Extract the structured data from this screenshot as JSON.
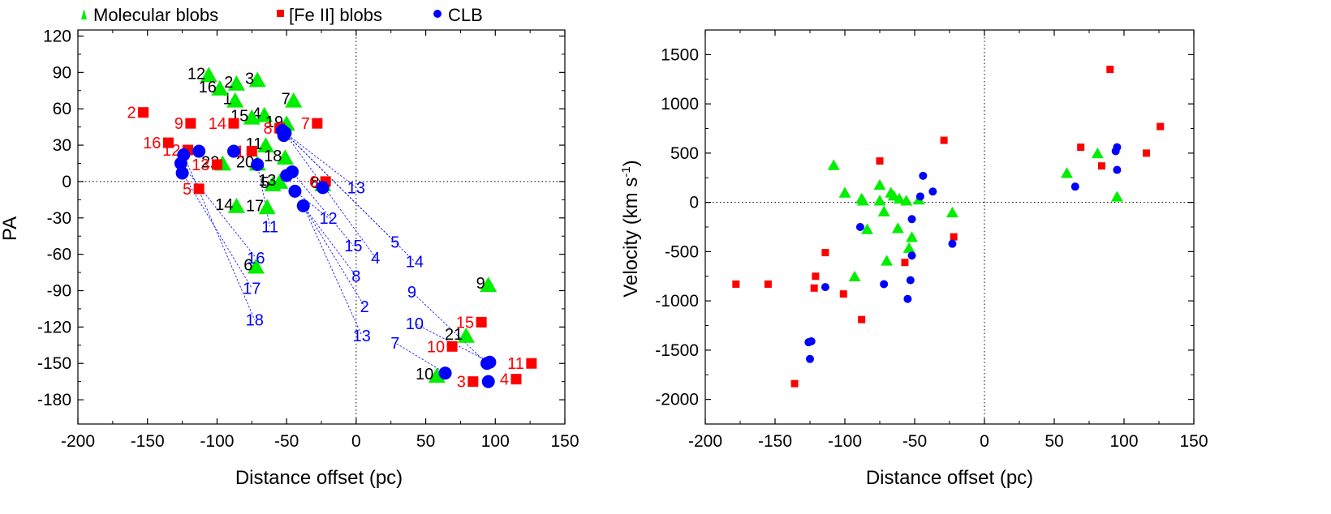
{
  "legend": [
    {
      "label": "Molecular blobs",
      "color": "#00ee00",
      "marker": "triangle"
    },
    {
      "label": "[Fe II] blobs",
      "color": "#ff0000",
      "marker": "square"
    },
    {
      "label": "CLB",
      "color": "#0000ff",
      "marker": "circle"
    }
  ],
  "chart_data": [
    {
      "type": "scatter",
      "xlabel": "Distance offset (pc)",
      "ylabel": "PA",
      "xlim": [
        -200,
        150
      ],
      "ylim": [
        -200,
        125
      ],
      "xticks": [
        -200,
        -150,
        -100,
        -50,
        0,
        50,
        100,
        150
      ],
      "yticks": [
        120,
        90,
        60,
        30,
        0,
        -30,
        -60,
        -90,
        -120,
        -150,
        -180
      ],
      "series": [
        {
          "name": "Molecular blobs",
          "color": "#00ee00",
          "marker": "triangle",
          "label_color": "#000000",
          "points": [
            {
              "id": "1",
              "x": -87,
              "y": 67
            },
            {
              "id": "2",
              "x": -86,
              "y": 81
            },
            {
              "id": "3",
              "x": -71,
              "y": 84
            },
            {
              "id": "4",
              "x": -66,
              "y": 55
            },
            {
              "id": "5",
              "x": -60,
              "y": -2
            },
            {
              "id": "6",
              "x": -72,
              "y": -70
            },
            {
              "id": "7",
              "x": -45,
              "y": 67
            },
            {
              "id": "8",
              "x": -24,
              "y": -2
            },
            {
              "id": "9",
              "x": 95,
              "y": -85
            },
            {
              "id": "10",
              "x": 58,
              "y": -160
            },
            {
              "id": "11",
              "x": -65,
              "y": 30
            },
            {
              "id": "12",
              "x": -106,
              "y": 88
            },
            {
              "id": "13",
              "x": -55,
              "y": 0
            },
            {
              "id": "14",
              "x": -86,
              "y": -20
            },
            {
              "id": "15",
              "x": -75,
              "y": 53
            },
            {
              "id": "16",
              "x": -98,
              "y": 77
            },
            {
              "id": "17",
              "x": -64,
              "y": -21
            },
            {
              "id": "18",
              "x": -51,
              "y": 20
            },
            {
              "id": "19",
              "x": -50,
              "y": 48
            },
            {
              "id": "20",
              "x": -71,
              "y": 15
            },
            {
              "id": "21",
              "x": 79,
              "y": -127
            },
            {
              "id": "22",
              "x": -96,
              "y": 15
            }
          ]
        },
        {
          "name": "[Fe II] blobs",
          "color": "#ff0000",
          "marker": "square",
          "label_color": "#ff0000",
          "points": [
            {
              "id": "1",
              "x": -75,
              "y": 25
            },
            {
              "id": "2",
              "x": -153,
              "y": 57
            },
            {
              "id": "3",
              "x": 84,
              "y": -165
            },
            {
              "id": "4",
              "x": 115,
              "y": -163
            },
            {
              "id": "5",
              "x": -113,
              "y": -6
            },
            {
              "id": "6",
              "x": -22,
              "y": 0
            },
            {
              "id": "7",
              "x": -28,
              "y": 48
            },
            {
              "id": "8",
              "x": -55,
              "y": 44
            },
            {
              "id": "9",
              "x": -119,
              "y": 48
            },
            {
              "id": "10",
              "x": 69,
              "y": -136
            },
            {
              "id": "11",
              "x": 126,
              "y": -150
            },
            {
              "id": "12",
              "x": -121,
              "y": 26
            },
            {
              "id": "13",
              "x": -100,
              "y": 14
            },
            {
              "id": "14",
              "x": -88,
              "y": 48
            },
            {
              "id": "15",
              "x": 90,
              "y": -116
            },
            {
              "id": "16",
              "x": -135,
              "y": 32
            }
          ]
        },
        {
          "name": "CLB",
          "color": "#0000ff",
          "marker": "circle",
          "label_color": "#0000ff",
          "points": [
            {
              "id": "2",
              "x": -53,
              "y": 42
            },
            {
              "id": "4",
              "x": -51,
              "y": 40
            },
            {
              "id": "5",
              "x": -52,
              "y": 38
            },
            {
              "id": "7",
              "x": 64,
              "y": -158
            },
            {
              "id": "8",
              "x": -38,
              "y": -20
            },
            {
              "id": "9",
              "x": 94,
              "y": -150
            },
            {
              "id": "10",
              "x": 96,
              "y": -149
            },
            {
              "id": "11",
              "x": -71,
              "y": 14
            },
            {
              "id": "12",
              "x": -44,
              "y": -8
            },
            {
              "id": "13",
              "x": -46,
              "y": 8
            },
            {
              "id": "15",
              "x": -50,
              "y": 5
            },
            {
              "id": "16",
              "x": -126,
              "y": 15
            },
            {
              "id": "17",
              "x": -125,
              "y": 7
            },
            {
              "id": "18",
              "x": -124,
              "y": 22
            },
            {
              "id": "19",
              "x": -113,
              "y": 25
            },
            {
              "id": "20",
              "x": -88,
              "y": 25
            },
            {
              "id": "21",
              "x": 95,
              "y": -165
            },
            {
              "id": "22",
              "x": -24,
              "y": -5
            }
          ]
        }
      ],
      "annotations": [
        {
          "text": "13",
          "x": 0,
          "y": -5
        },
        {
          "text": "12",
          "x": -20,
          "y": -30
        },
        {
          "text": "11",
          "x": -62,
          "y": -37
        },
        {
          "text": "5",
          "x": 28,
          "y": -50
        },
        {
          "text": "15",
          "x": -2,
          "y": -53
        },
        {
          "text": "4",
          "x": 14,
          "y": -63
        },
        {
          "text": "14",
          "x": 42,
          "y": -66
        },
        {
          "text": "16",
          "x": -72,
          "y": -63
        },
        {
          "text": "8",
          "x": 0,
          "y": -78
        },
        {
          "text": "17",
          "x": -75,
          "y": -88
        },
        {
          "text": "9",
          "x": 40,
          "y": -91
        },
        {
          "text": "2",
          "x": 6,
          "y": -103
        },
        {
          "text": "18",
          "x": -73,
          "y": -114
        },
        {
          "text": "10",
          "x": 42,
          "y": -117
        },
        {
          "text": "13",
          "x": 4,
          "y": -127
        },
        {
          "text": "7",
          "x": 28,
          "y": -133
        }
      ],
      "guides": [
        {
          "from": [
            -53,
            42
          ],
          "to": [
            0,
            -5
          ]
        },
        {
          "from": [
            -51,
            40
          ],
          "to": [
            28,
            -50
          ]
        },
        {
          "from": [
            -50,
            38
          ],
          "to": [
            14,
            -63
          ]
        },
        {
          "from": [
            -46,
            8
          ],
          "to": [
            -2,
            -53
          ]
        },
        {
          "from": [
            -44,
            -8
          ],
          "to": [
            -20,
            -30
          ]
        },
        {
          "from": [
            -71,
            14
          ],
          "to": [
            -62,
            -37
          ]
        },
        {
          "from": [
            -38,
            -20
          ],
          "to": [
            4,
            -127
          ]
        },
        {
          "from": [
            -38,
            -20
          ],
          "to": [
            6,
            -103
          ]
        },
        {
          "from": [
            -38,
            -20
          ],
          "to": [
            0,
            -78
          ]
        },
        {
          "from": [
            -126,
            15
          ],
          "to": [
            -72,
            -63
          ]
        },
        {
          "from": [
            -125,
            7
          ],
          "to": [
            -75,
            -88
          ]
        },
        {
          "from": [
            -124,
            22
          ],
          "to": [
            -73,
            -114
          ]
        },
        {
          "from": [
            -53,
            42
          ],
          "to": [
            42,
            -66
          ]
        },
        {
          "from": [
            94,
            -150
          ],
          "to": [
            40,
            -91
          ]
        },
        {
          "from": [
            96,
            -149
          ],
          "to": [
            42,
            -117
          ]
        },
        {
          "from": [
            64,
            -158
          ],
          "to": [
            28,
            -133
          ]
        }
      ]
    },
    {
      "type": "scatter",
      "xlabel": "Distance offset (pc)",
      "ylabel": "Velocity (km s-1)",
      "ylabel_main": "Velocity  (km s",
      "ylabel_sup": "-1",
      "ylabel_close": ")",
      "xlim": [
        -200,
        150
      ],
      "ylim": [
        -2250,
        1750
      ],
      "xticks": [
        -200,
        -150,
        -100,
        -50,
        0,
        50,
        100,
        150
      ],
      "yticks": [
        1500,
        1000,
        500,
        0,
        -500,
        -1000,
        -1500,
        -2000
      ],
      "series": [
        {
          "name": "Molecular blobs",
          "color": "#00ee00",
          "marker": "triangle",
          "points": [
            {
              "x": -108,
              "y": 380
            },
            {
              "x": -100,
              "y": 100
            },
            {
              "x": -88,
              "y": 40
            },
            {
              "x": -87,
              "y": 20
            },
            {
              "x": -84,
              "y": -270
            },
            {
              "x": -75,
              "y": 180
            },
            {
              "x": -75,
              "y": 20
            },
            {
              "x": -72,
              "y": -90
            },
            {
              "x": -70,
              "y": -590
            },
            {
              "x": -67,
              "y": 100
            },
            {
              "x": -65,
              "y": 70
            },
            {
              "x": -62,
              "y": -260
            },
            {
              "x": -61,
              "y": 40
            },
            {
              "x": -56,
              "y": 20
            },
            {
              "x": -54,
              "y": -460
            },
            {
              "x": -52,
              "y": -350
            },
            {
              "x": -47,
              "y": 30
            },
            {
              "x": -93,
              "y": -750
            },
            {
              "x": -23,
              "y": -100
            },
            {
              "x": 59,
              "y": 300
            },
            {
              "x": 81,
              "y": 500
            },
            {
              "x": 95,
              "y": 60
            }
          ]
        },
        {
          "name": "[Fe II] blobs",
          "color": "#ff0000",
          "marker": "square",
          "points": [
            {
              "x": -178,
              "y": -830
            },
            {
              "x": -155,
              "y": -830
            },
            {
              "x": -136,
              "y": -1840
            },
            {
              "x": -122,
              "y": -870
            },
            {
              "x": -121,
              "y": -750
            },
            {
              "x": -114,
              "y": -510
            },
            {
              "x": -101,
              "y": -930
            },
            {
              "x": -88,
              "y": -1190
            },
            {
              "x": -75,
              "y": 420
            },
            {
              "x": -57,
              "y": -610
            },
            {
              "x": -29,
              "y": 630
            },
            {
              "x": -22,
              "y": -350
            },
            {
              "x": 69,
              "y": 560
            },
            {
              "x": 84,
              "y": 370
            },
            {
              "x": 90,
              "y": 1350
            },
            {
              "x": 116,
              "y": 500
            },
            {
              "x": 126,
              "y": 770
            }
          ]
        },
        {
          "name": "CLB",
          "color": "#0000ff",
          "marker": "circle",
          "points": [
            {
              "x": -126,
              "y": -1420
            },
            {
              "x": -124,
              "y": -1410
            },
            {
              "x": -125,
              "y": -1590
            },
            {
              "x": -114,
              "y": -860
            },
            {
              "x": -89,
              "y": -250
            },
            {
              "x": -72,
              "y": -830
            },
            {
              "x": -55,
              "y": -980
            },
            {
              "x": -53,
              "y": -790
            },
            {
              "x": -52,
              "y": -540
            },
            {
              "x": -52,
              "y": -170
            },
            {
              "x": -46,
              "y": 60
            },
            {
              "x": -44,
              "y": 270
            },
            {
              "x": -37,
              "y": 110
            },
            {
              "x": -23,
              "y": -420
            },
            {
              "x": 65,
              "y": 160
            },
            {
              "x": 94,
              "y": 520
            },
            {
              "x": 95,
              "y": 560
            },
            {
              "x": 95,
              "y": 330
            }
          ]
        }
      ]
    }
  ]
}
